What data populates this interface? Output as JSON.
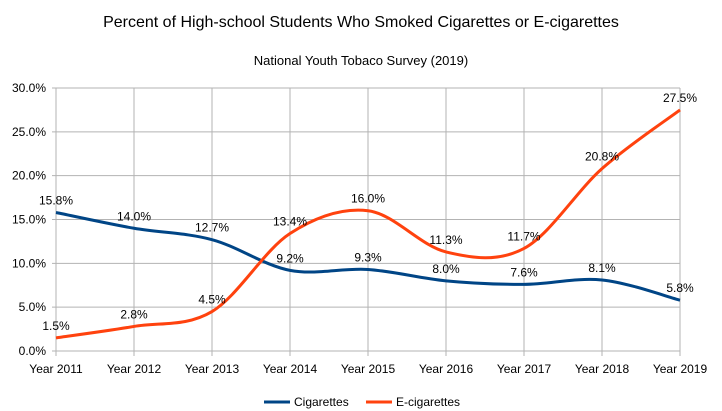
{
  "chart_data": {
    "type": "line",
    "title": "Percent of High-school Students Who Smoked Cigarettes or E-cigarettes",
    "subtitle": "National Youth Tobaco Survey (2019)",
    "categories": [
      "Year 2011",
      "Year 2012",
      "Year 2013",
      "Year 2014",
      "Year 2015",
      "Year 2016",
      "Year 2017",
      "Year 2018",
      "Year 2019"
    ],
    "series": [
      {
        "name": "Cigarettes",
        "color": "#004586",
        "values": [
          15.8,
          14.0,
          12.7,
          9.2,
          9.3,
          8.0,
          7.6,
          8.1,
          5.8
        ],
        "labels": [
          "15.8%",
          "14.0%",
          "12.7%",
          "9.2%",
          "9.3%",
          "8.0%",
          "7.6%",
          "8.1%",
          "5.8%"
        ]
      },
      {
        "name": "E-cigarettes",
        "color": "#ff420e",
        "values": [
          1.5,
          2.8,
          4.5,
          13.4,
          16.0,
          11.3,
          11.7,
          20.8,
          27.5
        ],
        "labels": [
          "1.5%",
          "2.8%",
          "4.5%",
          "13.4%",
          "16.0%",
          "11.3%",
          "11.7%",
          "20.8%",
          "27.5%"
        ]
      }
    ],
    "ylim": [
      0,
      30
    ],
    "yticks": [
      "0.0%",
      "5.0%",
      "10.0%",
      "15.0%",
      "20.0%",
      "25.0%",
      "30.0%"
    ],
    "smooth": true,
    "grid": true,
    "legend": "bottom"
  }
}
